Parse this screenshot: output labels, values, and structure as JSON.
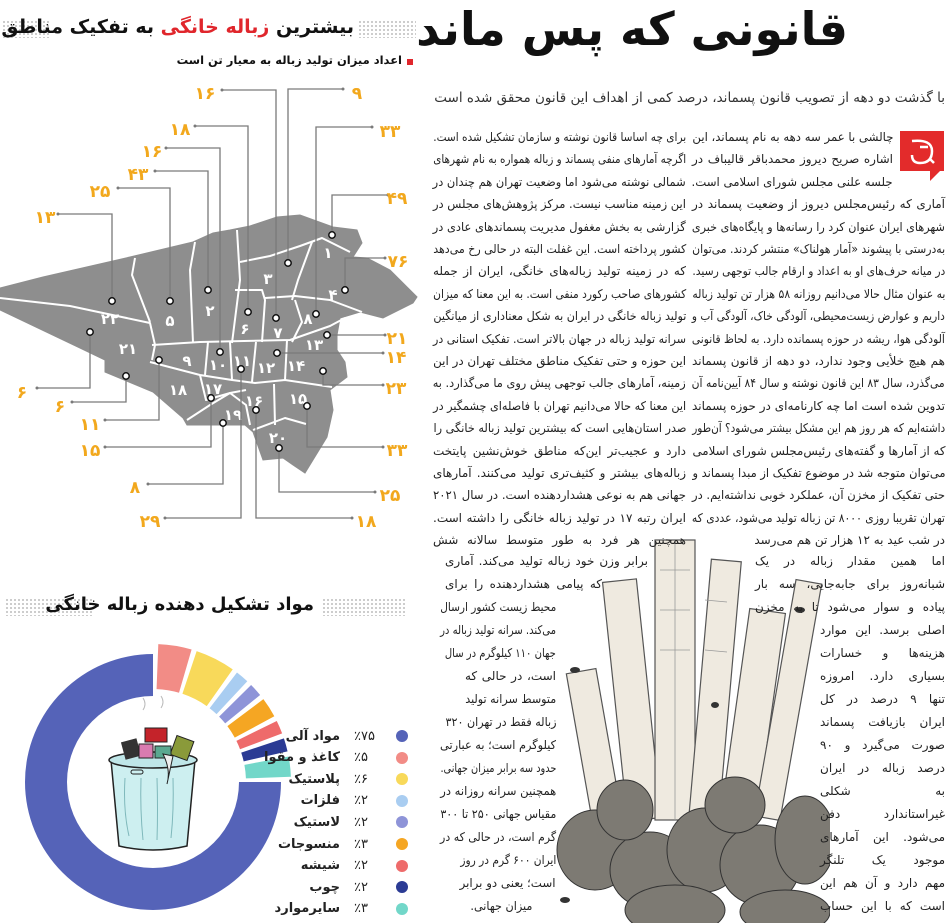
{
  "map_panel": {
    "title_part1": "بیشترین",
    "title_highlight": "زباله خانگی",
    "title_part2": "به تفکیک مناطق تهران",
    "subtitle": "اعداد میزان تولید زباله به معیار تن است",
    "accent_color": "#e0262c",
    "value_color": "#f2a81d",
    "map_color": "#8e8e8e",
    "regions": [
      {
        "region": "۷",
        "value": "۱۶"
      },
      {
        "region": "۳",
        "value": "۹"
      },
      {
        "region": "۶",
        "value": "۱۸"
      },
      {
        "region": "۸",
        "value": "۳۳"
      },
      {
        "region": "۱۰",
        "value": "۱۶"
      },
      {
        "region": "۲",
        "value": "۴۳"
      },
      {
        "region": "۵",
        "value": "۲۵"
      },
      {
        "region": "۱",
        "value": "۴۹"
      },
      {
        "region": "۲۲",
        "value": "۱۳"
      },
      {
        "region": "۴",
        "value": "۷۶"
      },
      {
        "region": "۱۳",
        "value": "۲۱"
      },
      {
        "region": "۱۲",
        "value": "۱۴"
      },
      {
        "region": "۱۴",
        "value": "۲۳"
      },
      {
        "region": "۲۱",
        "value": "۶"
      },
      {
        "region": "۱۸",
        "value": "۶"
      },
      {
        "region": "۹",
        "value": "۱۱"
      },
      {
        "region": "۱۷",
        "value": "۱۵"
      },
      {
        "region": "۱۵",
        "value": "۳۳"
      },
      {
        "region": "۱۹",
        "value": "۸"
      },
      {
        "region": "۲۰",
        "value": "۲۵"
      },
      {
        "region": "۱۱",
        "value": "۲۹"
      },
      {
        "region": "۱۶",
        "value": "۱۸"
      }
    ]
  },
  "composition_panel": {
    "title": "مواد تشکیل دهنده زباله خانگی"
  },
  "chart_data": {
    "type": "pie",
    "variant": "donut",
    "title": "مواد تشکیل دهنده زباله خانگی",
    "legend_position": "right",
    "slices": [
      {
        "label": "مواد آلی",
        "percent": "٪۷۵",
        "value": 75,
        "color": "#5563b8"
      },
      {
        "label": "کاغذ و مقوا",
        "percent": "٪۵",
        "value": 5,
        "color": "#f28c86"
      },
      {
        "label": "پلاستیک",
        "percent": "٪۶",
        "value": 6,
        "color": "#f8d95a"
      },
      {
        "label": "فلزات",
        "percent": "٪۲",
        "value": 2,
        "color": "#a9cdf1"
      },
      {
        "label": "لاستیک",
        "percent": "٪۲",
        "value": 2,
        "color": "#8e94d8"
      },
      {
        "label": "منسوجات",
        "percent": "٪۳",
        "value": 3,
        "color": "#f5a623"
      },
      {
        "label": "شیشه",
        "percent": "٪۲",
        "value": 2,
        "color": "#ee6b6b"
      },
      {
        "label": "چوب",
        "percent": "٪۲",
        "value": 2,
        "color": "#2b3b94"
      },
      {
        "label": "سایرموارد",
        "percent": "٪۳",
        "value": 3,
        "color": "#72d7c9"
      }
    ]
  },
  "article": {
    "headline": "قانونی که پس ماند",
    "subheadline": "با گذشت دو دهه از تصویب قانون پسماند، درصد کمی از اهداف این قانون محقق شده است",
    "logo_color": "#e32b2b",
    "col_right_top": [
      "چالشی با عمر سه دهه به نام پسماند، این",
      "اشاره صریح دیروز محمدباقر قالیباف در",
      "جلسه علنی مجلس شورای اسلامی است.",
      "آماری که رئیس‌مجلس دیروز از وضعیت پسماند در",
      "شهرهای ایران عنوان کرد را رسانه‌ها و پایگاه‌های خبری",
      "به‌درستی با پیشوند «آمار هولناک» منتشر کردند. می‌توان",
      "در میانه حرف‌های او به اعداد و ارقام جالب توجهی رسید.",
      "به عنوان مثال حالا می‌دانیم روزانه ۵۸ هزار تن تولید زباله",
      "داریم و عوارض زیست‌محیطی، آلودگی خاک، آلودگی آب و",
      "آلودگی هوا، ریشه در حوزه پسمانده دارد. به لحاظ قانونی",
      "هم هیچ خلأیی وجود ندارد، دو دهه از قانون پسماند",
      "می‌گذرد، سال ۸۳ این قانون نوشته و سال ۸۴ آیین‌نامه آن",
      "تدوین شده است اما چه کارنامه‌ای در حوزه پسماند",
      "داشته‌ایم که هر روز هم این مشکل بیشتر می‌شود؟ آن‌طور",
      "که از آمارها و گفته‌های رئیس‌مجلس شورای اسلامی",
      "می‌توان متوجه شد در موضوع تفکیک از مبدا پسماند و",
      "حتی تفکیک از مخزن آن، عملکرد خوبی نداشته‌ایم. در",
      "تهران تقریبا روزی ۸۰۰۰ تن زباله تولید می‌شود، عددی که",
      "در شب عید به ۱۲ هزار تن هم می‌رسد"
    ],
    "col_left_top": [
      "برای چه اساسا قانون نوشته و سازمان تشکیل شده است.",
      "اگرچه آمارهای منفی پسماند و زباله همواره به نام شهرهای",
      "شمالی نوشته می‌شود اما وضعیت تهران هم چندان در",
      "این زمینه مناسب نیست. مرکز پژوهش‌های مجلس در",
      "گزارشی به بخش مغفول مدیریت پسماندهای عادی در",
      "کشور پرداخته است. این غفلت البته در حالی رخ می‌دهد",
      "که در زمینه تولید زباله‌های خانگی، ایران از جمله",
      "کشورهای صاحب رکورد منفی است. به این معنا که میزان",
      "تولید زباله خانگی در ایران به شکل معناداری از میانگین",
      "سرانه تولید زباله در جهان بالاتر است. تفکیک استانی در",
      "این حوزه و حتی تفکیک مناطق مختلف تهران در این",
      "زمینه، آمارهای جالب توجهی پیش روی ما می‌گذارد. به",
      "این معنا که حالا می‌دانیم تهران با فاصله‌ای چشمگیر در",
      "صدر استان‌هایی است که بیشترین تولید زباله خانگی را",
      "دارد و عجیب‌تر این‌که مناطق خوش‌نشین پایتخت",
      "زباله‌های بیشتر و کثیف‌تری تولید می‌کنند. آمارهای",
      "جهانی هم به نوعی هشداردهنده است. در سال ۲۰۲۱",
      "ایران رتبه ۱۷ در تولید زباله خانگی را داشته است.",
      "همچنین هر فرد به طور متوسط سالانه شش"
    ],
    "col_left_bottom": [
      "برابر وزن خود زباله تولید می‌کند. آماری",
      "که پیامی هشداردهنده را برای",
      "محیط زیست کشور ارسال",
      "می‌کند. سرانه تولید زباله در",
      "جهان ۱۱۰ کیلوگرم در سال",
      "است، در حالی که",
      "متوسط سرانه تولید",
      "زباله فقط در تهران ۳۲۰",
      "کیلوگرم است؛ به عبارتی",
      "حدود سه برابر میزان جهانی.",
      "همچنین سرانه روزانه در",
      "مقیاس جهانی ۲۵۰ تا ۳۰۰",
      "گرم است، در حالی که در",
      "ایران ۶۰۰ گرم در روز",
      "است؛ یعنی دو برابر",
      "میزان جهانی."
    ],
    "col_right_bottom": [
      "اما همین مقدار زباله در یک",
      "شبانه‌روز برای جابه‌جایی، سه بار",
      "پیاده و سوار می‌شود تا به مخزن",
      "اصلی برسد. این موارد",
      "هزینه‌ها و خسارات",
      "بسیاری دارد. امروزه",
      "تنها ۹ درصد در کل",
      "ایران بازیافت پسماند",
      "صورت می‌گیرد و ۹۰",
      "درصد زباله در ایران",
      "به شکلی",
      "غیراستاندارد دفن",
      "می‌شود. این آمارهای",
      "موجود یک تلنگر",
      "مهم دارد و آن هم این",
      "است که با این حساب"
    ]
  }
}
